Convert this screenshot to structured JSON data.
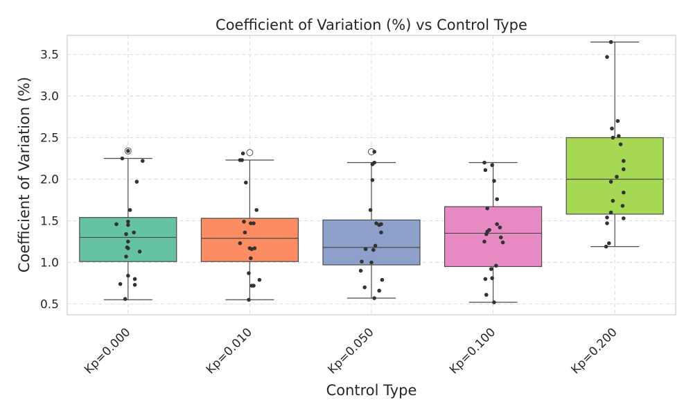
{
  "chart_data": {
    "type": "box",
    "title": "Coefficient of Variation (%) vs Control Type",
    "xlabel": "Control Type",
    "ylabel": "Coefficient of Variation (%)",
    "ylim": [
      0.37,
      3.73
    ],
    "yticks": [
      "0.5",
      "1.0",
      "1.5",
      "2.0",
      "2.5",
      "3.0",
      "3.5"
    ],
    "ytick_values": [
      0.5,
      1.0,
      1.5,
      2.0,
      2.5,
      3.0,
      3.5
    ],
    "grid": true,
    "categories": [
      "Kp=0.000",
      "Kp=0.010",
      "Kp=0.050",
      "Kp=0.100",
      "Kp=0.200"
    ],
    "colors": [
      "#66c2a5",
      "#fc8d62",
      "#8da0cb",
      "#e78ac3",
      "#a6d854"
    ],
    "boxes": [
      {
        "whisker_low": 0.55,
        "q1": 1.01,
        "median": 1.3,
        "q3": 1.54,
        "whisker_high": 2.25,
        "outliers": [
          2.34
        ]
      },
      {
        "whisker_low": 0.55,
        "q1": 1.01,
        "median": 1.29,
        "q3": 1.53,
        "whisker_high": 2.23,
        "outliers": [
          2.32
        ]
      },
      {
        "whisker_low": 0.57,
        "q1": 0.97,
        "median": 1.18,
        "q3": 1.51,
        "whisker_high": 2.2,
        "outliers": [
          2.33
        ]
      },
      {
        "whisker_low": 0.52,
        "q1": 0.95,
        "median": 1.35,
        "q3": 1.67,
        "whisker_high": 2.2,
        "outliers": []
      },
      {
        "whisker_low": 1.19,
        "q1": 1.58,
        "median": 2.0,
        "q3": 2.5,
        "whisker_high": 3.65,
        "outliers": []
      }
    ],
    "points": [
      [
        [
          2.34,
          0.0
        ],
        [
          2.25,
          -0.06
        ],
        [
          2.22,
          0.15
        ],
        [
          1.97,
          0.09
        ],
        [
          1.63,
          0.02
        ],
        [
          1.49,
          0.0
        ],
        [
          1.46,
          -0.12
        ],
        [
          1.45,
          0.0
        ],
        [
          1.36,
          0.06
        ],
        [
          1.34,
          -0.02
        ],
        [
          1.25,
          0.0
        ],
        [
          1.18,
          -0.01
        ],
        [
          1.17,
          0.0
        ],
        [
          1.13,
          0.12
        ],
        [
          1.07,
          -0.02
        ],
        [
          0.84,
          0.0
        ],
        [
          0.8,
          0.07
        ],
        [
          0.74,
          -0.08
        ],
        [
          0.73,
          0.07
        ],
        [
          0.56,
          -0.03
        ]
      ],
      [
        [
          2.31,
          -0.07
        ],
        [
          2.23,
          -0.1
        ],
        [
          2.23,
          -0.08
        ],
        [
          1.96,
          -0.04
        ],
        [
          1.63,
          0.07
        ],
        [
          1.49,
          -0.06
        ],
        [
          1.47,
          0.01
        ],
        [
          1.47,
          0.04
        ],
        [
          1.36,
          -0.05
        ],
        [
          1.23,
          -0.1
        ],
        [
          1.17,
          0.0
        ],
        [
          1.17,
          0.05
        ],
        [
          1.16,
          0.02
        ],
        [
          1.05,
          0.01
        ],
        [
          0.87,
          -0.01
        ],
        [
          0.79,
          0.1
        ],
        [
          0.72,
          0.02
        ],
        [
          0.72,
          0.04
        ],
        [
          0.55,
          -0.01
        ]
      ],
      [
        [
          2.33,
          0.03
        ],
        [
          2.2,
          0.03
        ],
        [
          2.18,
          0.01
        ],
        [
          1.99,
          0.01
        ],
        [
          1.63,
          -0.01
        ],
        [
          1.47,
          0.05
        ],
        [
          1.46,
          0.1
        ],
        [
          1.45,
          0.08
        ],
        [
          1.36,
          0.1
        ],
        [
          1.2,
          0.04
        ],
        [
          1.16,
          -0.06
        ],
        [
          1.15,
          0.02
        ],
        [
          1.01,
          -0.1
        ],
        [
          1.0,
          0.0
        ],
        [
          0.9,
          -0.11
        ],
        [
          0.79,
          0.11
        ],
        [
          0.7,
          -0.07
        ],
        [
          0.66,
          0.08
        ],
        [
          0.57,
          0.03
        ]
      ],
      [
        [
          2.2,
          -0.09
        ],
        [
          2.17,
          -0.01
        ],
        [
          2.11,
          -0.08
        ],
        [
          1.98,
          0.01
        ],
        [
          1.76,
          0.04
        ],
        [
          1.65,
          -0.06
        ],
        [
          1.46,
          0.04
        ],
        [
          1.42,
          0.07
        ],
        [
          1.39,
          -0.04
        ],
        [
          1.37,
          -0.06
        ],
        [
          1.34,
          -0.07
        ],
        [
          1.3,
          0.08
        ],
        [
          1.25,
          -0.09
        ],
        [
          1.24,
          0.1
        ],
        [
          0.96,
          0.03
        ],
        [
          0.92,
          -0.02
        ],
        [
          0.81,
          -0.01
        ],
        [
          0.8,
          -0.08
        ],
        [
          0.61,
          -0.07
        ],
        [
          0.52,
          0.01
        ]
      ],
      [
        [
          3.65,
          -0.04
        ],
        [
          3.47,
          -0.08
        ],
        [
          2.7,
          0.03
        ],
        [
          2.61,
          -0.03
        ],
        [
          2.52,
          0.04
        ],
        [
          2.5,
          -0.02
        ],
        [
          2.42,
          0.06
        ],
        [
          2.22,
          0.09
        ],
        [
          2.12,
          0.09
        ],
        [
          2.03,
          0.02
        ],
        [
          1.97,
          -0.04
        ],
        [
          1.84,
          0.09
        ],
        [
          1.74,
          -0.02
        ],
        [
          1.68,
          0.08
        ],
        [
          1.6,
          -0.04
        ],
        [
          1.54,
          -0.08
        ],
        [
          1.53,
          0.09
        ],
        [
          1.47,
          -0.08
        ],
        [
          1.23,
          -0.06
        ],
        [
          1.19,
          -0.09
        ]
      ]
    ]
  }
}
